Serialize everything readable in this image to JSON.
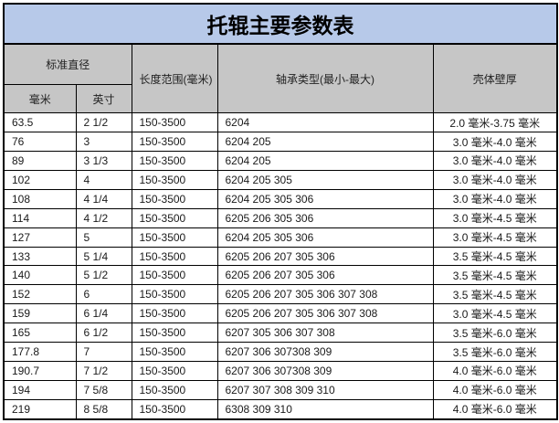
{
  "title": "托辊主要参数表",
  "colors": {
    "title_bg": "#b7c9e9",
    "header_bg": "#c6c6c6",
    "border": "#000000",
    "row_bg": "#ffffff"
  },
  "header": {
    "standard_diameter": "标准直径",
    "mm": "毫米",
    "inch": "英寸",
    "length_range": "长度范围(毫米)",
    "bearing_type": "轴承类型(最小-最大)",
    "shell_thickness": "壳体壁厚"
  },
  "rows": [
    {
      "mm": "63.5",
      "inch": "2 1/2",
      "length": "150-3500",
      "bearing": "6204",
      "thickness": "2.0 毫米-3.75 毫米"
    },
    {
      "mm": "76",
      "inch": "3",
      "length": "150-3500",
      "bearing": "6204 205",
      "thickness": "3.0 毫米-4.0 毫米"
    },
    {
      "mm": "89",
      "inch": "3 1/3",
      "length": "150-3500",
      "bearing": "6204 205",
      "thickness": "3.0 毫米-4.0 毫米"
    },
    {
      "mm": "102",
      "inch": "4",
      "length": "150-3500",
      "bearing": "6204 205 305",
      "thickness": "3.0 毫米-4.0 毫米"
    },
    {
      "mm": "108",
      "inch": "4 1/4",
      "length": "150-3500",
      "bearing": "6204 205 305 306",
      "thickness": "3.0 毫米-4.0 毫米"
    },
    {
      "mm": "114",
      "inch": "4 1/2",
      "length": "150-3500",
      "bearing": "6205 206 305 306",
      "thickness": "3.0 毫米-4.5 毫米"
    },
    {
      "mm": "127",
      "inch": "5",
      "length": "150-3500",
      "bearing": "6204 205 305 306",
      "thickness": "3.0 毫米-4.5 毫米"
    },
    {
      "mm": "133",
      "inch": "5 1/4",
      "length": "150-3500",
      "bearing": "6205 206 207 305 306",
      "thickness": "3.5 毫米-4.5 毫米"
    },
    {
      "mm": "140",
      "inch": "5 1/2",
      "length": "150-3500",
      "bearing": "6205 206 207 305 306",
      "thickness": "3.5 毫米-4.5 毫米"
    },
    {
      "mm": "152",
      "inch": "6",
      "length": "150-3500",
      "bearing": "6205 206 207 305 306 307 308",
      "thickness": "3.5 毫米-4.5 毫米"
    },
    {
      "mm": "159",
      "inch": "6 1/4",
      "length": "150-3500",
      "bearing": "6205 206 207 305 306 307 308",
      "thickness": "3.0 毫米-4.5 毫米"
    },
    {
      "mm": "165",
      "inch": "6 1/2",
      "length": "150-3500",
      "bearing": "6207 305 306 307 308",
      "thickness": "3.5 毫米-6.0 毫米"
    },
    {
      "mm": "177.8",
      "inch": "7",
      "length": "150-3500",
      "bearing": "6207 306 307308 309",
      "thickness": "3.5 毫米-6.0 毫米"
    },
    {
      "mm": "190.7",
      "inch": "7 1/2",
      "length": "150-3500",
      "bearing": "6207 306 307308 309",
      "thickness": "4.0 毫米-6.0 毫米"
    },
    {
      "mm": "194",
      "inch": "7 5/8",
      "length": "150-3500",
      "bearing": "6207 307 308 309 310",
      "thickness": "4.0 毫米-6.0 毫米"
    },
    {
      "mm": "219",
      "inch": "8 5/8",
      "length": "150-3500",
      "bearing": "6308 309 310",
      "thickness": "4.0 毫米-6.0 毫米"
    }
  ]
}
